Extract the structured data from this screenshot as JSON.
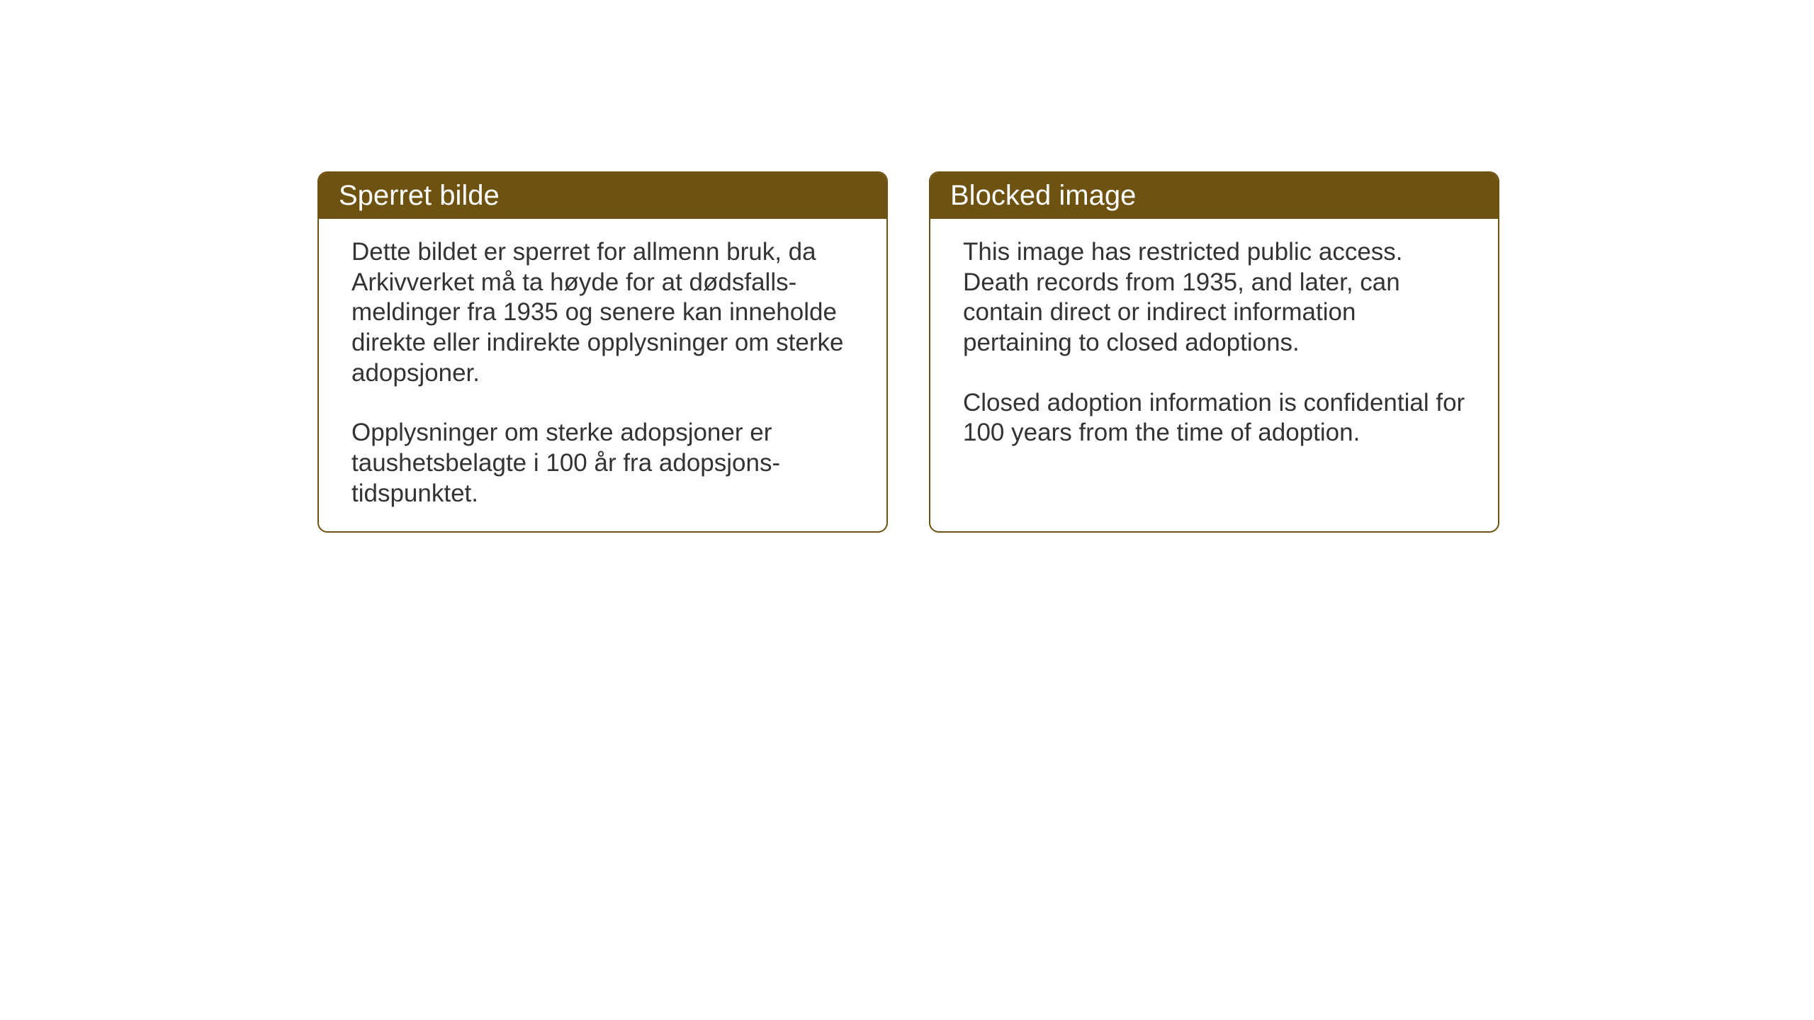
{
  "cards": {
    "norwegian": {
      "title": "Sperret bilde",
      "paragraph1": "Dette bildet er sperret for allmenn bruk, da Arkivverket må ta høyde for at dødsfalls-meldinger fra 1935 og senere kan inneholde direkte eller indirekte opplysninger om sterke adopsjoner.",
      "paragraph2": "Opplysninger om sterke adopsjoner er taushetsbelagte i 100 år fra adopsjons-tidspunktet."
    },
    "english": {
      "title": "Blocked image",
      "paragraph1": "This image has restricted public access. Death records from 1935, and later, can contain direct or indirect information pertaining to closed adoptions.",
      "paragraph2": "Closed adoption information is confidential for 100 years from the time of adoption."
    }
  },
  "styling": {
    "header_bg_color": "#6e5211",
    "header_text_color": "#ffffff",
    "border_color": "#6e5211",
    "body_text_color": "#333333",
    "page_bg_color": "#ffffff",
    "border_radius": 14,
    "title_fontsize": 40,
    "body_fontsize": 35
  }
}
